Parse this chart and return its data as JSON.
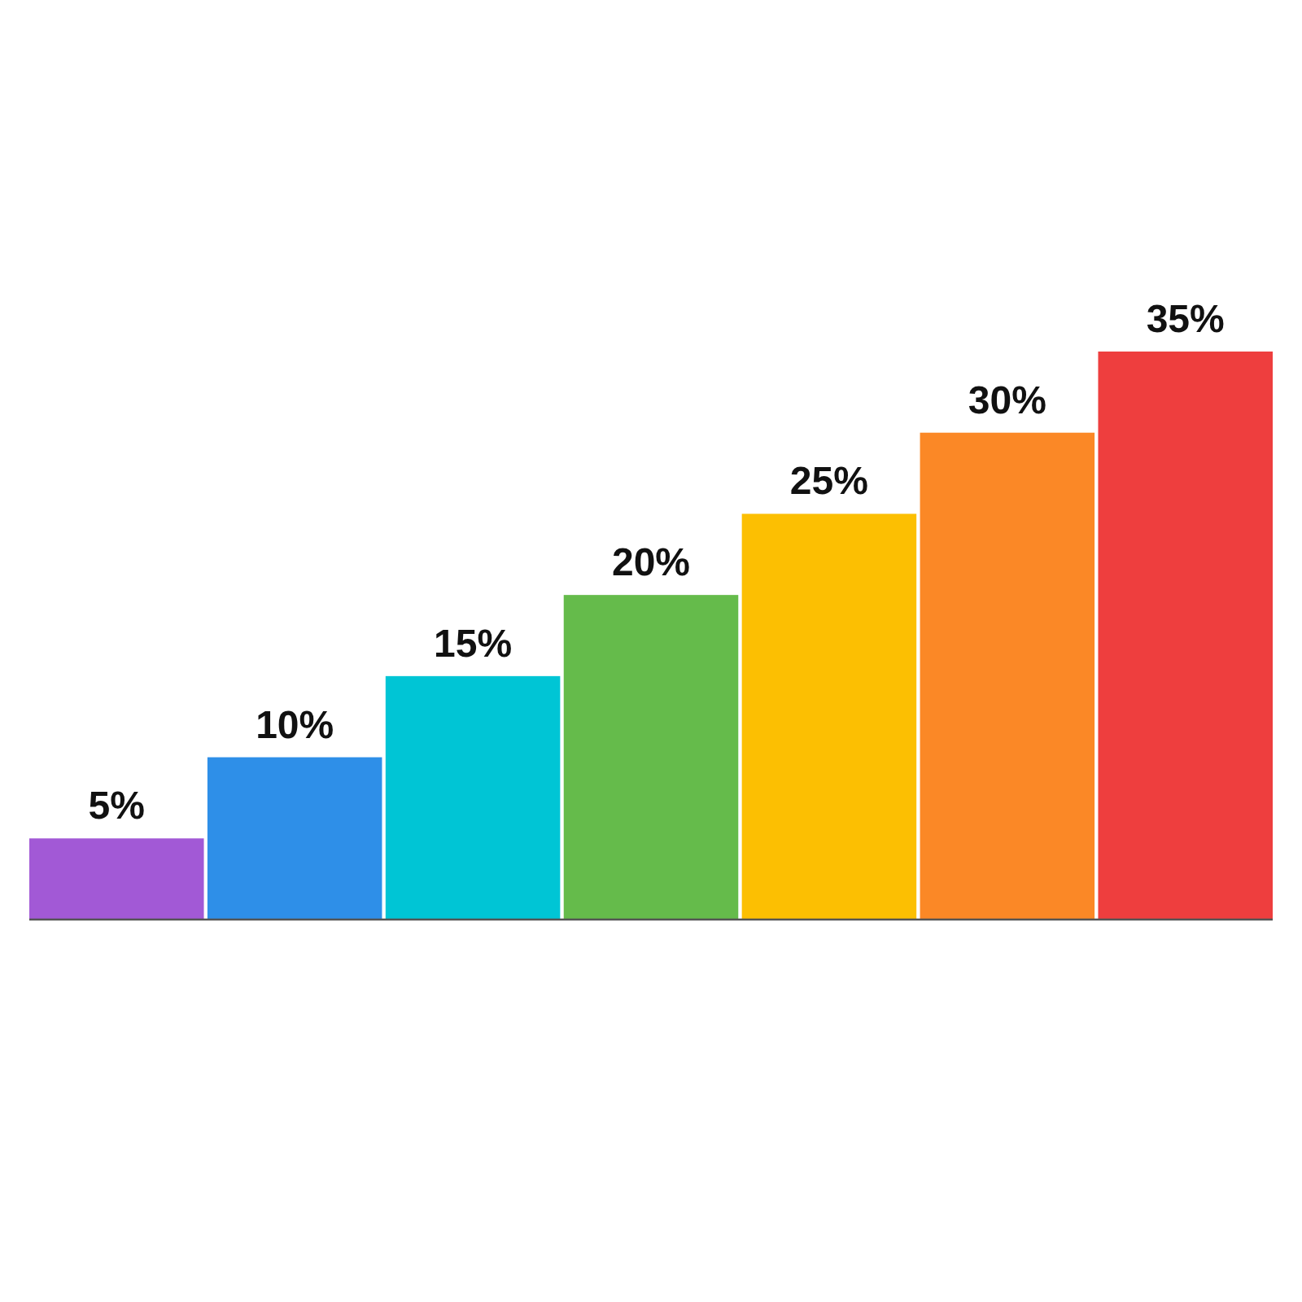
{
  "chart_data": {
    "type": "bar",
    "categories": [
      null,
      null,
      null,
      null,
      null,
      null,
      null
    ],
    "values": [
      5,
      10,
      15,
      20,
      25,
      30,
      35
    ],
    "colors": [
      "#a259d6",
      "#2e8fe8",
      "#00c5d5",
      "#65bb4b",
      "#fcbf02",
      "#fb8826",
      "#ee3e3e"
    ],
    "value_labels": [
      "5%",
      "10%",
      "15%",
      "20%",
      "25%",
      "30%",
      "35%"
    ]
  }
}
